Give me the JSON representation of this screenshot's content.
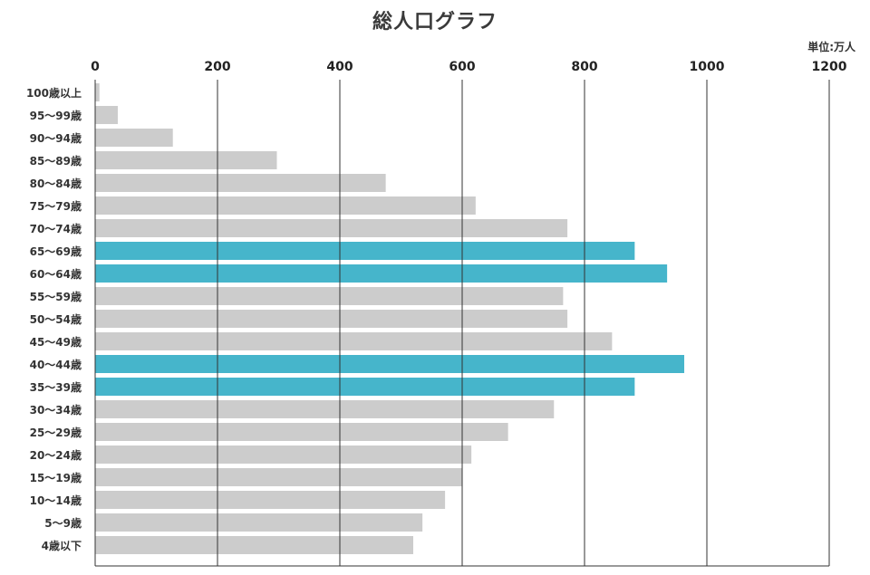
{
  "chart_data": {
    "type": "bar",
    "orientation": "horizontal",
    "title": "総人口グラフ",
    "unit": "単位:万人",
    "xlim": [
      0,
      1200
    ],
    "xticks": [
      "0",
      "200",
      "400",
      "600",
      "800",
      "1000",
      "1200"
    ],
    "grid": true,
    "categories": [
      "100歳以上",
      "95～99歳",
      "90～94歳",
      "85～89歳",
      "80～84歳",
      "75～79歳",
      "70～74歳",
      "65～69歳",
      "60～64歳",
      "55～59歳",
      "50～54歳",
      "45～49歳",
      "40～44歳",
      "35～39歳",
      "30～34歳",
      "25～29歳",
      "20～24歳",
      "15～19歳",
      "10～14歳",
      "5～9歳",
      "4歳以下"
    ],
    "values": [
      7,
      37,
      127,
      297,
      475,
      622,
      772,
      882,
      935,
      765,
      772,
      845,
      963,
      882,
      750,
      675,
      615,
      600,
      572,
      535,
      520
    ],
    "highlight": [
      false,
      false,
      false,
      false,
      false,
      false,
      false,
      true,
      true,
      false,
      false,
      false,
      true,
      true,
      false,
      false,
      false,
      false,
      false,
      false,
      false
    ],
    "colors": {
      "default": "#cccccc",
      "highlight": "#46b5cb",
      "grid": "#333333"
    }
  }
}
